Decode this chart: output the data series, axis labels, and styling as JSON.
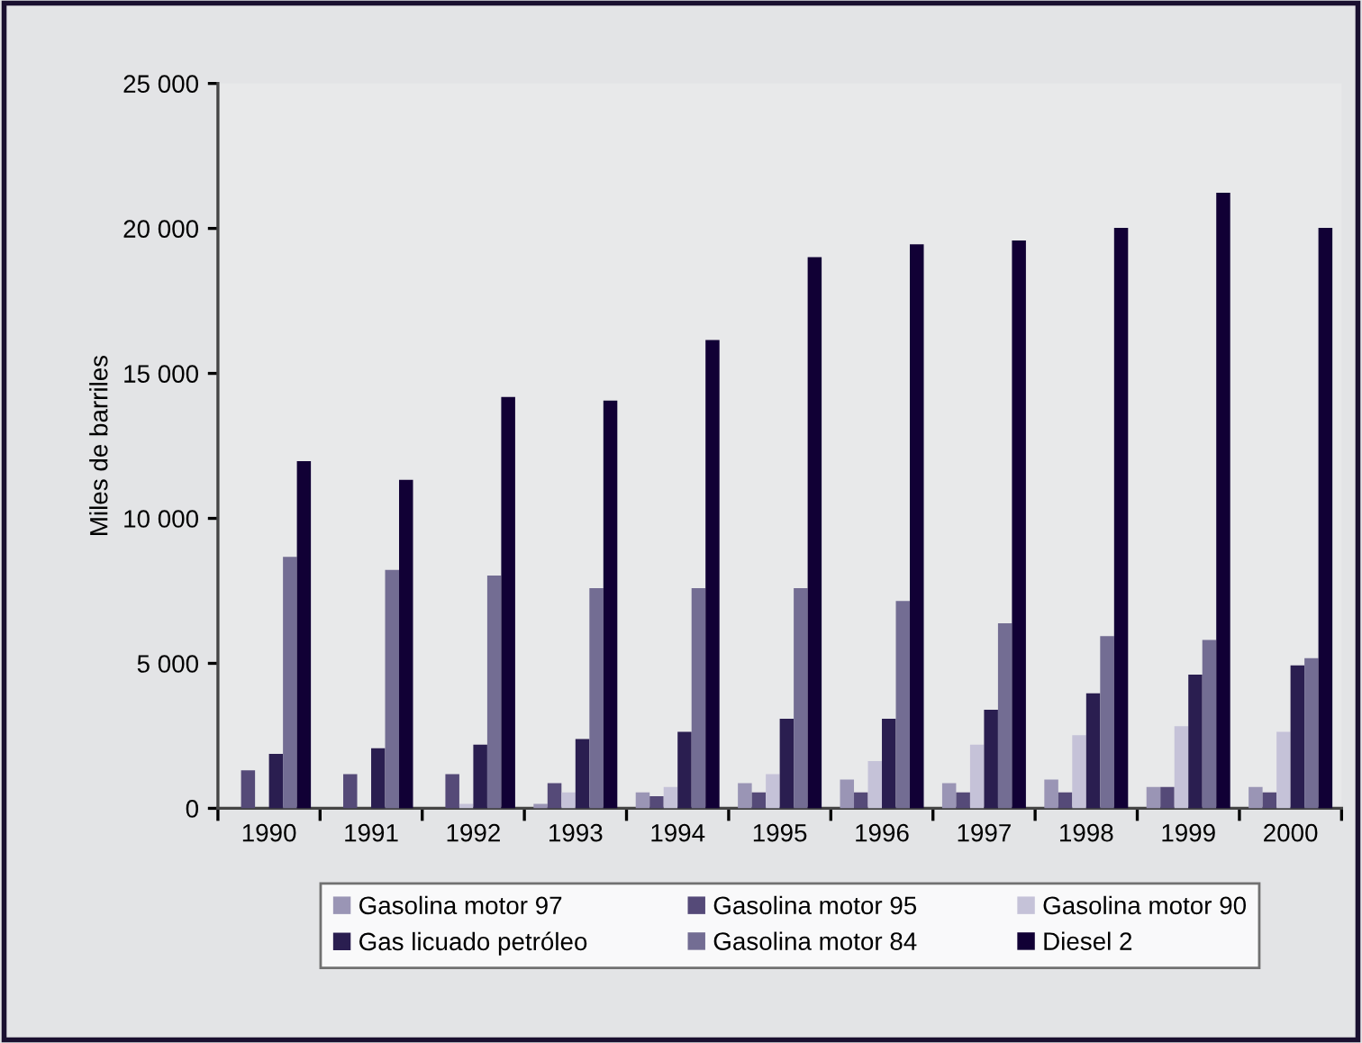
{
  "chart_data": {
    "type": "bar",
    "ylabel": "Miles de barriles",
    "categories": [
      "1990",
      "1991",
      "1992",
      "1993",
      "1994",
      "1995",
      "1996",
      "1997",
      "1998",
      "1999",
      "2000"
    ],
    "ylim": [
      0,
      25000
    ],
    "yticks": [
      {
        "value": 0,
        "label": "0"
      },
      {
        "value": 5000,
        "label": "5 000"
      },
      {
        "value": 10000,
        "label": "10 000"
      },
      {
        "value": 15000,
        "label": "15 000"
      },
      {
        "value": 20000,
        "label": "20 000"
      },
      {
        "value": 25000,
        "label": "25 000"
      }
    ],
    "grid": false,
    "legend": "bottom",
    "series": [
      {
        "name": "Gasolina motor 97",
        "color": "#9a95b5",
        "values": [
          0,
          0,
          0,
          150,
          550,
          870,
          990,
          870,
          990,
          740,
          740
        ]
      },
      {
        "name": "Gasolina motor 95",
        "color": "#554a78",
        "values": [
          1310,
          1180,
          1180,
          870,
          420,
          550,
          550,
          550,
          550,
          740,
          550
        ]
      },
      {
        "name": "Gasolina motor 90",
        "color": "#c5c2d8",
        "values": [
          0,
          0,
          150,
          550,
          740,
          1180,
          1630,
          2200,
          2520,
          2830,
          2640
        ]
      },
      {
        "name": "Gas licuado petróleo",
        "color": "#2a1e50",
        "values": [
          1880,
          2070,
          2200,
          2390,
          2640,
          3090,
          3090,
          3400,
          3970,
          4610,
          4930
        ]
      },
      {
        "name": "Gasolina motor 84",
        "color": "#736d93",
        "values": [
          8670,
          8220,
          8030,
          7590,
          7590,
          7590,
          7150,
          6380,
          5940,
          5810,
          5180
        ]
      },
      {
        "name": "Diesel 2",
        "color": "#110035",
        "values": [
          11970,
          11330,
          14190,
          14060,
          16150,
          19010,
          19450,
          19580,
          20020,
          21230,
          20020
        ]
      }
    ]
  }
}
